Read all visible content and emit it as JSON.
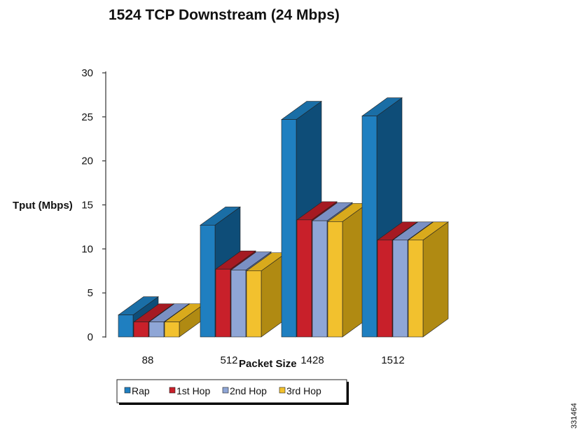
{
  "chart_data": {
    "type": "bar",
    "title": "1524 TCP Downstream (24 Mbps)",
    "xlabel": "Packet Size",
    "ylabel": "Tput (Mbps)",
    "ylim": [
      0,
      30
    ],
    "yticks": [
      "0",
      "5",
      "10",
      "15",
      "20",
      "25",
      "30"
    ],
    "categories": [
      "88",
      "512",
      "1428",
      "1512"
    ],
    "series": [
      {
        "name": "Rap",
        "values": [
          2.5,
          12.7,
          24.7,
          25.1
        ],
        "color": "#1f7fc0",
        "side": "#0e4d78",
        "top": "#1a6ea6"
      },
      {
        "name": "1st Hop",
        "values": [
          1.7,
          7.7,
          13.3,
          11.0
        ],
        "color": "#c8202a",
        "side": "#7d1118",
        "top": "#a51a22"
      },
      {
        "name": "2nd Hop",
        "values": [
          1.7,
          7.6,
          13.2,
          11.0
        ],
        "color": "#8fa6d6",
        "side": "#5a6e9c",
        "top": "#7a90c4"
      },
      {
        "name": "3rd Hop",
        "values": [
          1.7,
          7.5,
          13.1,
          11.0
        ],
        "color": "#f2c12e",
        "side": "#b08a12",
        "top": "#d9aa1c"
      }
    ],
    "grid": false,
    "legend_position": "bottom"
  },
  "figure_id": "331464"
}
